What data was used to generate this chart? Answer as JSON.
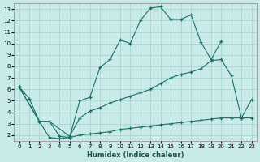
{
  "bg_color": "#c8eae8",
  "grid_color": "#a8d0cc",
  "line_color": "#1a7068",
  "xlabel": "Humidex (Indice chaleur)",
  "xlim_min": -0.5,
  "xlim_max": 23.5,
  "ylim_min": 1.5,
  "ylim_max": 13.5,
  "xticks": [
    0,
    1,
    2,
    3,
    4,
    5,
    6,
    7,
    8,
    9,
    10,
    11,
    12,
    13,
    14,
    15,
    16,
    17,
    18,
    19,
    20,
    21,
    22,
    23
  ],
  "yticks": [
    2,
    3,
    4,
    5,
    6,
    7,
    8,
    9,
    10,
    11,
    12,
    13
  ],
  "line1_x": [
    0,
    1,
    2,
    3,
    4,
    5,
    6,
    7,
    8,
    9,
    10,
    11,
    12,
    13,
    14,
    15,
    16,
    17,
    18,
    19,
    20
  ],
  "line1_y": [
    6.2,
    5.2,
    3.2,
    1.8,
    1.7,
    1.8,
    5.0,
    5.3,
    7.9,
    8.6,
    10.3,
    10.0,
    12.0,
    13.1,
    13.2,
    12.1,
    12.1,
    12.5,
    10.1,
    8.6,
    10.2
  ],
  "line2_x": [
    0,
    2,
    3,
    5,
    6,
    7,
    8,
    9,
    10,
    11,
    12,
    13,
    14,
    15,
    16,
    17,
    18,
    19,
    20,
    21,
    22,
    23
  ],
  "line2_y": [
    6.2,
    3.2,
    3.2,
    1.9,
    3.5,
    4.1,
    4.4,
    4.8,
    5.1,
    5.4,
    5.7,
    6.0,
    6.5,
    7.0,
    7.3,
    7.5,
    7.8,
    8.5,
    8.6,
    7.2,
    3.5,
    5.1
  ],
  "line3_x": [
    0,
    2,
    3,
    4,
    5,
    6,
    7,
    8,
    9,
    10,
    11,
    12,
    13,
    14,
    15,
    16,
    17,
    18,
    19,
    20,
    21,
    22,
    23
  ],
  "line3_y": [
    6.2,
    3.2,
    3.2,
    1.9,
    1.8,
    2.0,
    2.1,
    2.2,
    2.3,
    2.5,
    2.6,
    2.7,
    2.8,
    2.9,
    3.0,
    3.1,
    3.2,
    3.3,
    3.4,
    3.5,
    3.5,
    3.5,
    3.5
  ]
}
